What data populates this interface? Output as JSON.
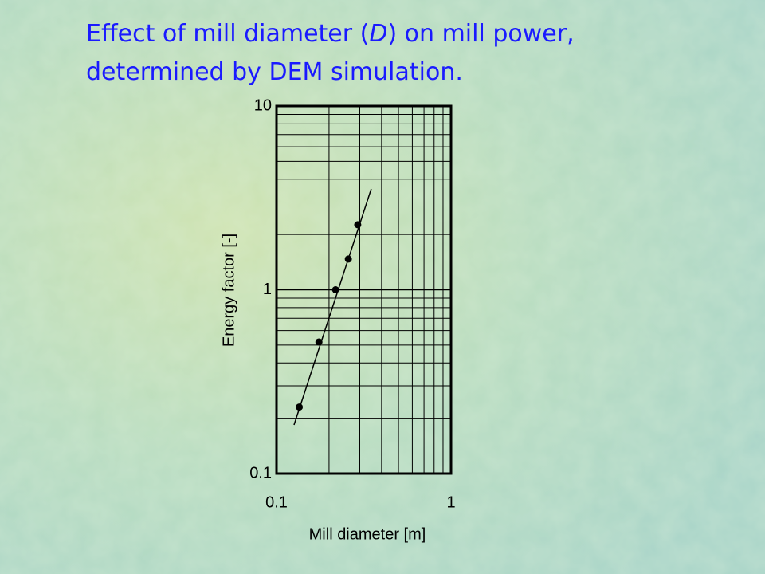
{
  "chart_data": {
    "type": "scatter",
    "title": [
      "Effect of mill diameter (",
      "D",
      ") on mill power,",
      "determined by DEM simulation."
    ],
    "x_label": "Mill diameter [m]",
    "y_label": "Energy factor  [-]",
    "log_x": true,
    "log_y": true,
    "grid": true,
    "minor_grid": true,
    "xlim": [
      0.1,
      1
    ],
    "ylim": [
      0.1,
      10
    ],
    "xticks": [
      0.1,
      1
    ],
    "yticks": [
      0.1,
      1,
      10
    ],
    "color": "#000000",
    "series": [
      {
        "x": [
          0.135,
          0.175,
          0.218,
          0.258,
          0.292
        ],
        "values": [
          0.23,
          0.52,
          1.0,
          1.47,
          2.26
        ],
        "mode": "markers"
      },
      {
        "x": [
          0.126,
          0.349
        ],
        "values": [
          0.184,
          3.54
        ],
        "mode": "line"
      }
    ]
  }
}
